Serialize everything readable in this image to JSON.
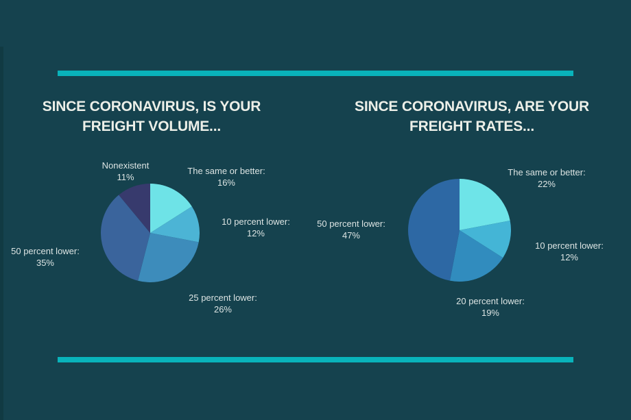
{
  "page": {
    "background_color": "#15424E",
    "left_edge_strip_color": "#113A43",
    "accent_bar_color": "#09B3BB",
    "title_color": "#ECEFE8",
    "label_color": "#DCE4E3"
  },
  "chart_data": [
    {
      "type": "pie",
      "title": "SINCE CORONAVIRUS, IS YOUR FREIGHT VOLUME...",
      "title_lines": [
        "SINCE CORONAVIRUS, IS YOUR",
        "FREIGHT VOLUME..."
      ],
      "unit": "percent",
      "total": 100,
      "start_angle_deg": 0,
      "direction": "clockwise",
      "legend": "none",
      "labels_position": "around",
      "slices": [
        {
          "label": "The same or better:",
          "value": 16,
          "value_label": "16%",
          "color": "#6EE3E7"
        },
        {
          "label": "10 percent lower:",
          "value": 12,
          "value_label": "12%",
          "color": "#4CB4D5"
        },
        {
          "label": "25 percent lower:",
          "value": 26,
          "value_label": "26%",
          "color": "#3D8CBB"
        },
        {
          "label": "50 percent lower:",
          "value": 35,
          "value_label": "35%",
          "color": "#3A649C"
        },
        {
          "label": "Nonexistent",
          "value": 11,
          "value_label": "11%",
          "color": "#373A6D"
        }
      ]
    },
    {
      "type": "pie",
      "title": "SINCE CORONAVIRUS, ARE YOUR FREIGHT RATES...",
      "title_lines": [
        "SINCE CORONAVIRUS, ARE YOUR",
        "FREIGHT RATES..."
      ],
      "unit": "percent",
      "total": 100,
      "start_angle_deg": 0,
      "direction": "clockwise",
      "legend": "none",
      "labels_position": "around",
      "slices": [
        {
          "label": "The same or better:",
          "value": 22,
          "value_label": "22%",
          "color": "#6EE4E8"
        },
        {
          "label": "10 percent lower:",
          "value": 12,
          "value_label": "12%",
          "color": "#44B5D6"
        },
        {
          "label": "20 percent lower:",
          "value": 19,
          "value_label": "19%",
          "color": "#318CBE"
        },
        {
          "label": "50 percent lower:",
          "value": 47,
          "value_label": "47%",
          "color": "#2D68A4"
        }
      ]
    }
  ]
}
